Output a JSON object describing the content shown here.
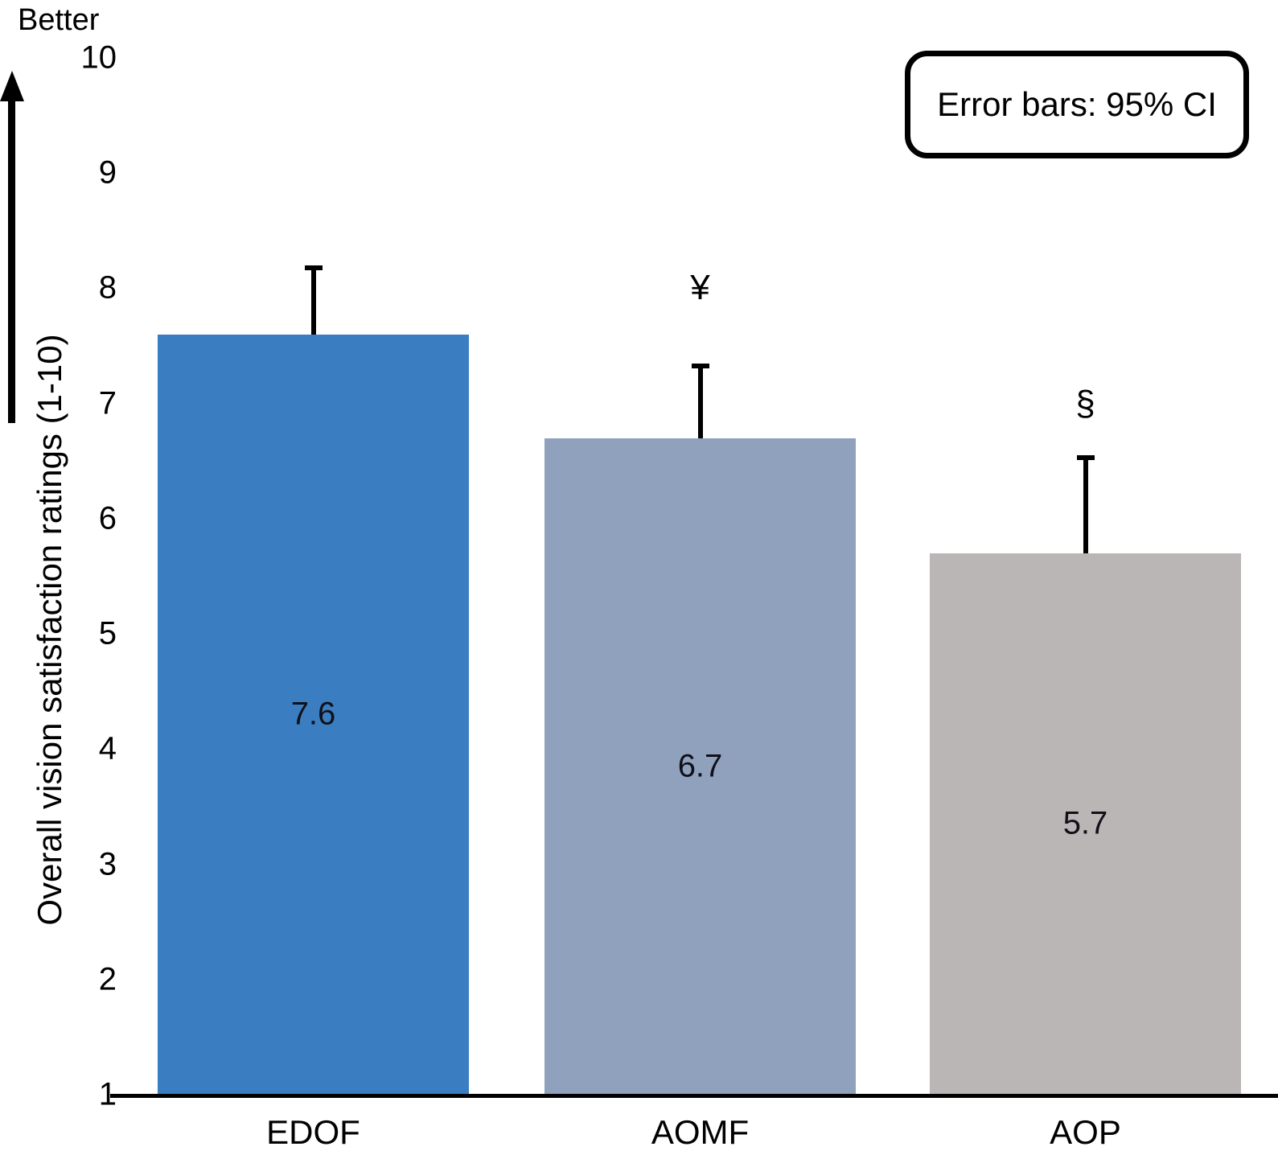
{
  "figure": {
    "better_label": "Better",
    "y_axis_title": "Overall vision satisfaction ratings (1-10)",
    "legend": "Error bars: 95% CI"
  },
  "colors": {
    "axis": "#000000",
    "error_bar": "#000000",
    "value_label_text": "#101018"
  },
  "chart_data": {
    "type": "bar",
    "categories": [
      "EDOF",
      "AOMF",
      "AOP"
    ],
    "values": [
      7.6,
      6.7,
      5.7
    ],
    "ci_upper": [
      8.2,
      7.35,
      6.55
    ],
    "annotations": [
      "",
      "¥",
      "§"
    ],
    "annotation_y": [
      null,
      8.0,
      7.0
    ],
    "bar_colors": [
      "#3A7DC1",
      "#8FA1BD",
      "#BAB6B5"
    ],
    "title": "",
    "xlabel": "",
    "ylabel": "Overall vision satisfaction ratings (1-10)",
    "ylim": [
      1,
      10
    ],
    "yticks": [
      1,
      2,
      3,
      4,
      5,
      6,
      7,
      8,
      9,
      10
    ],
    "legend_note": "Error bars: 95% CI",
    "grid": false,
    "value_labels_shown": true,
    "direction_note": "Better"
  }
}
